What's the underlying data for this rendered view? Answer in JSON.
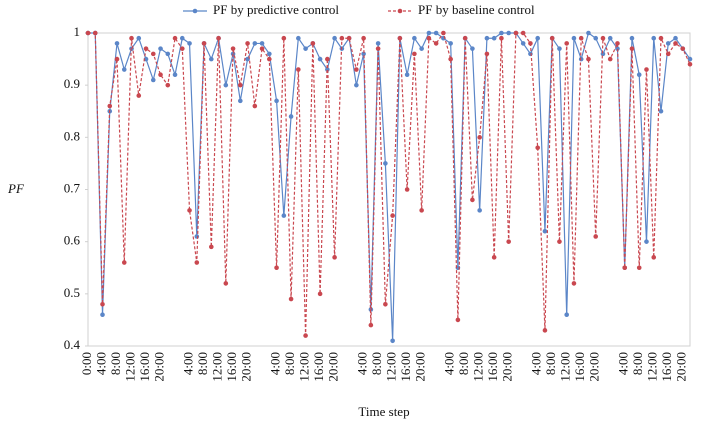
{
  "chart_data": {
    "type": "line",
    "x_label": "Time step",
    "y_label": "PF",
    "categories": [
      "0:00",
      null,
      "4:00",
      null,
      "8:00",
      null,
      "12:00",
      null,
      "16:00",
      null,
      "20:00",
      null,
      null,
      null,
      "4:00",
      null,
      "8:00",
      null,
      "12:00",
      null,
      "16:00",
      null,
      "20:00",
      null,
      null,
      null,
      "4:00",
      null,
      "8:00",
      null,
      "12:00",
      null,
      "16:00",
      null,
      "20:00",
      null,
      null,
      null,
      "4:00",
      null,
      "8:00",
      null,
      "12:00",
      null,
      "16:00",
      null,
      "20:00",
      null,
      null,
      null,
      "4:00",
      null,
      "8:00",
      null,
      "12:00",
      null,
      "16:00",
      null,
      "20:00",
      null,
      null,
      null,
      "4:00",
      null,
      "8:00",
      null,
      "12:00",
      null,
      "16:00",
      null,
      "20:00",
      null,
      null,
      null,
      "4:00",
      null,
      "8:00",
      null,
      "12:00",
      null,
      "16:00",
      null,
      "20:00",
      null
    ],
    "series": [
      {
        "name": "PF by predictive control",
        "color": "#5b86c8",
        "dashed": false,
        "values": [
          1,
          1,
          0.46,
          0.85,
          0.98,
          0.93,
          0.97,
          0.99,
          0.95,
          0.91,
          0.97,
          0.96,
          0.92,
          0.99,
          0.98,
          0.61,
          0.98,
          0.95,
          0.99,
          0.9,
          0.96,
          0.87,
          0.95,
          0.98,
          0.98,
          0.96,
          0.87,
          0.65,
          0.84,
          0.99,
          0.97,
          0.98,
          0.95,
          0.93,
          0.99,
          0.97,
          0.99,
          0.9,
          0.96,
          0.47,
          0.98,
          0.75,
          0.41,
          0.99,
          0.92,
          0.99,
          0.97,
          1,
          1,
          0.99,
          0.98,
          0.55,
          0.99,
          0.97,
          0.66,
          0.99,
          0.99,
          1,
          1,
          1,
          0.98,
          0.96,
          0.99,
          0.62,
          0.99,
          0.97,
          0.46,
          0.99,
          0.95,
          1,
          0.99,
          0.96,
          0.99,
          0.97,
          0.55,
          0.99,
          0.92,
          0.6,
          0.99,
          0.85,
          0.98,
          0.99,
          0.97,
          0.95
        ]
      },
      {
        "name": "PF by baseline control",
        "color": "#c9474f",
        "dashed": true,
        "values": [
          1,
          1,
          0.48,
          0.86,
          0.95,
          0.56,
          0.99,
          0.88,
          0.97,
          0.96,
          0.92,
          0.9,
          0.99,
          0.97,
          0.66,
          0.56,
          0.98,
          0.59,
          0.99,
          0.52,
          0.97,
          0.9,
          0.98,
          0.86,
          0.97,
          0.95,
          0.55,
          0.99,
          0.49,
          0.93,
          0.42,
          0.98,
          0.5,
          0.95,
          0.57,
          0.99,
          0.99,
          0.93,
          0.99,
          0.44,
          0.97,
          0.48,
          0.65,
          0.99,
          0.7,
          0.96,
          0.66,
          0.99,
          0.98,
          1,
          0.95,
          0.45,
          0.99,
          0.68,
          0.8,
          0.96,
          0.57,
          0.99,
          0.6,
          1,
          1,
          0.98,
          0.78,
          0.43,
          0.99,
          0.6,
          0.98,
          0.52,
          0.99,
          0.95,
          0.61,
          0.99,
          0.95,
          0.98,
          0.55,
          0.97,
          0.55,
          0.93,
          0.57,
          0.99,
          0.96,
          0.98,
          0.97,
          0.94
        ]
      }
    ],
    "ylim": [
      0.4,
      1
    ],
    "yticks": [
      0.4,
      0.5,
      0.6,
      0.7,
      0.8,
      0.9,
      1
    ],
    "grid": false,
    "legend": "top"
  }
}
